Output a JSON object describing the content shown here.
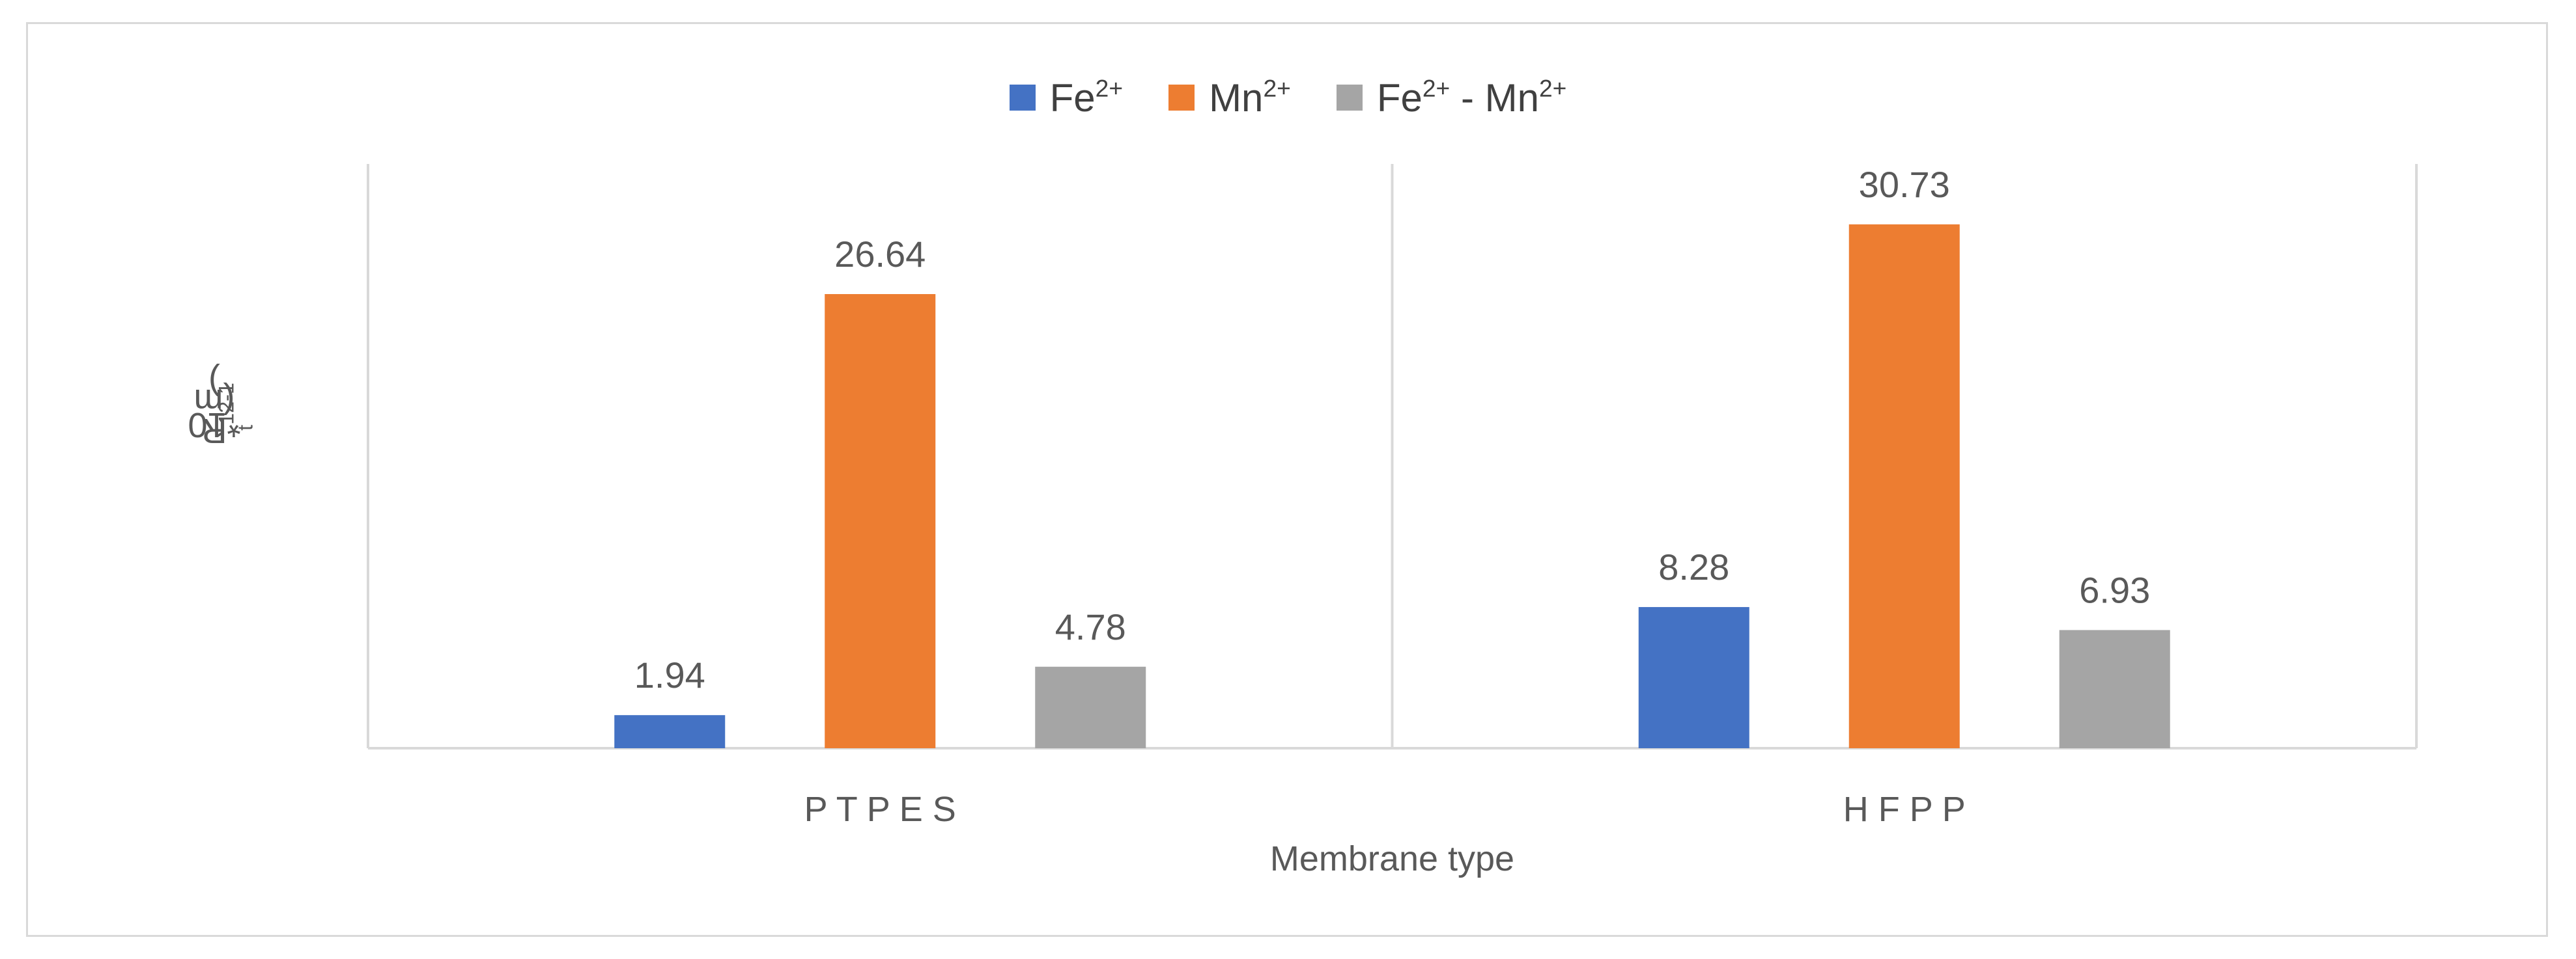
{
  "chart_data": {
    "type": "bar",
    "categories": [
      "P T  P E S",
      "H F  P P"
    ],
    "series": [
      {
        "name": "Fe²⁺",
        "values": [
          1.94,
          8.28
        ],
        "color": "#4472c4"
      },
      {
        "name": "Mn²⁺",
        "values": [
          26.64,
          30.73
        ],
        "color": "#ed7d31"
      },
      {
        "name": "Fe²⁺ - Mn²⁺",
        "values": [
          4.78,
          6.93
        ],
        "color": "#a5a5a5"
      }
    ],
    "data_labels": [
      [
        "1.94",
        "26.64",
        "4.78"
      ],
      [
        "8.28",
        "30.73",
        "6.93"
      ]
    ],
    "xlabel": "Membrane type",
    "ylabel_parts": {
      "base": "R",
      "sub": "t",
      "mid": "*10",
      "exp": "12",
      "unit_open": " (m",
      "unit_exp": "-1",
      "unit_close": ")"
    },
    "ylim": [
      0,
      33
    ],
    "grid": false,
    "legend_position": "top"
  },
  "legend": [
    {
      "base": "Fe",
      "sup": "2+",
      "color": "#4472c4"
    },
    {
      "base": "Mn",
      "sup": "2+",
      "color": "#ed7d31"
    },
    {
      "base": "Fe",
      "sup": "2+",
      "mid": " - Mn",
      "sup2": "2+",
      "color": "#a5a5a5"
    }
  ]
}
